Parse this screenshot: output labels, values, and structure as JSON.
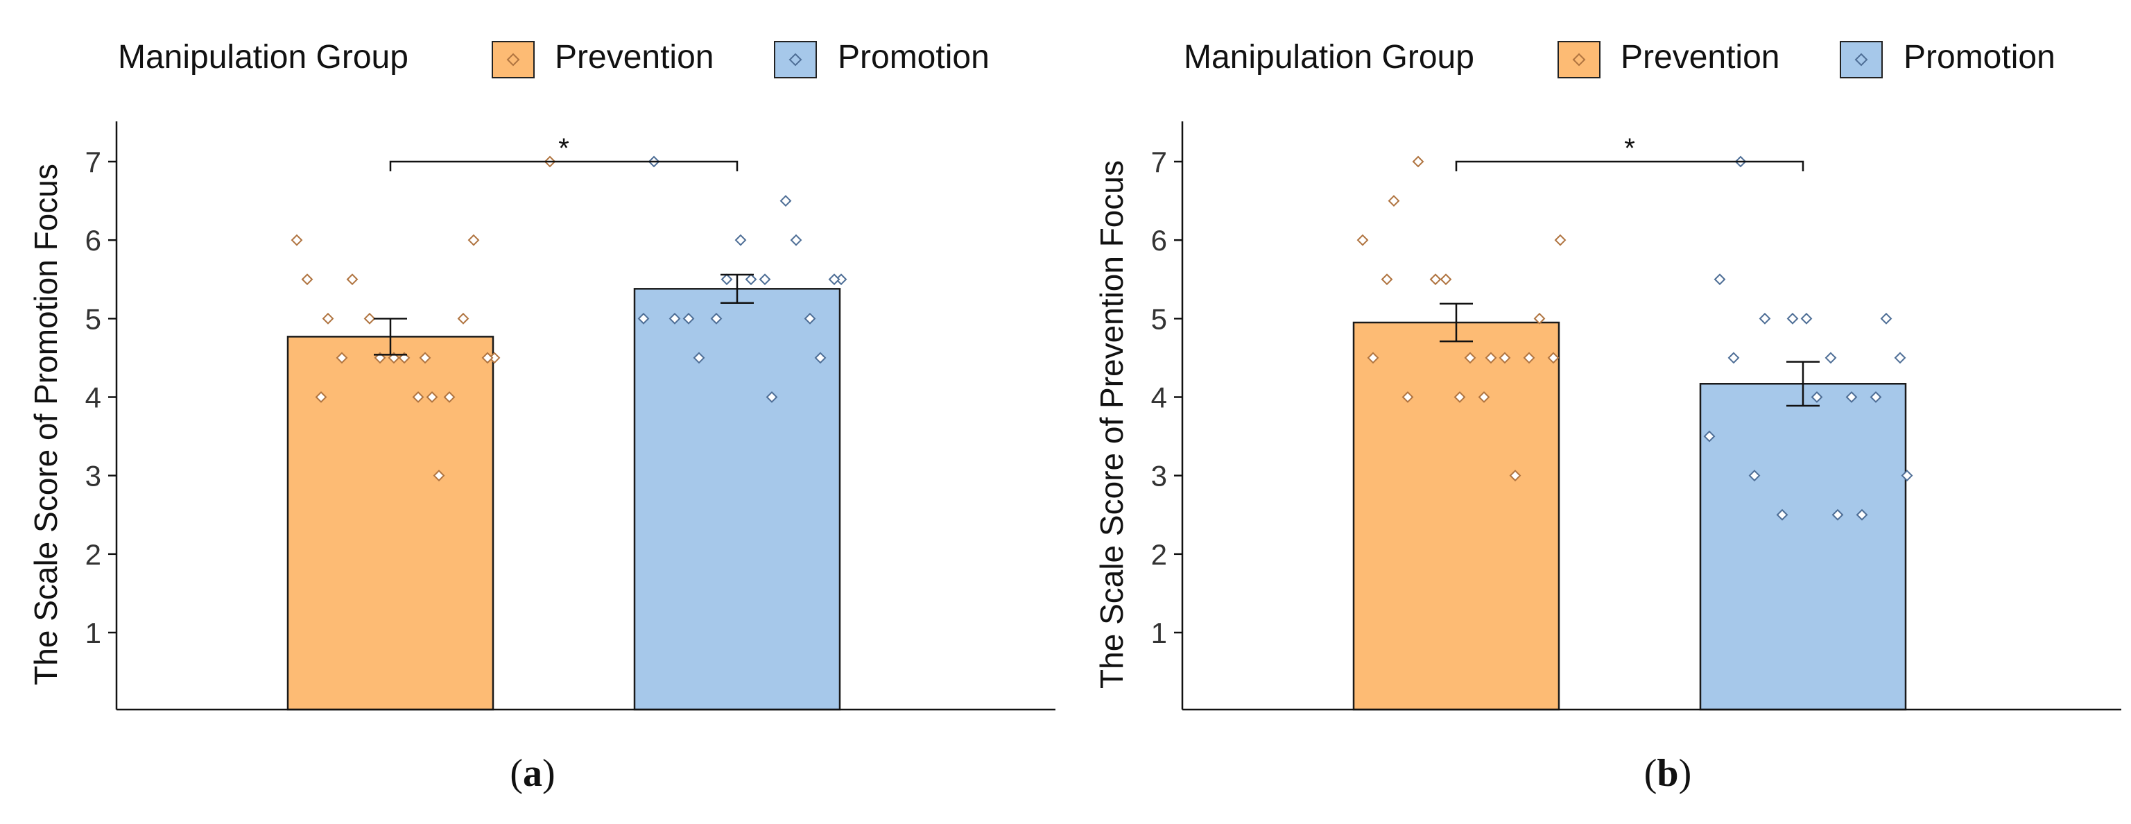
{
  "chart_data": [
    {
      "type": "bar",
      "panel_label": "a",
      "legend_title": "Manipulation Group",
      "categories": [
        "Prevention",
        "Promotion"
      ],
      "values": [
        4.77,
        5.38
      ],
      "error": [
        0.23,
        0.18
      ],
      "ylabel": "The Scale Score of Promotion Focus",
      "xlabel": "",
      "ylim": [
        0,
        7.5
      ],
      "yticks": [
        1,
        2,
        3,
        4,
        5,
        6,
        7
      ],
      "significance": "*",
      "points": {
        "Prevention": [
          6,
          5,
          5.5,
          4.5,
          4.5,
          4.5,
          4,
          6,
          4.5,
          5.5,
          4.5,
          5,
          4.5,
          4,
          3,
          5,
          4.5,
          4,
          4,
          7
        ],
        "Promotion": [
          5,
          5,
          4.5,
          5.5,
          5.5,
          4,
          6,
          4.5,
          5.5,
          7,
          5,
          5,
          6,
          5.5,
          6.5,
          5,
          5.5
        ]
      }
    },
    {
      "type": "bar",
      "panel_label": "b",
      "legend_title": "Manipulation Group",
      "categories": [
        "Prevention",
        "Promotion"
      ],
      "values": [
        4.95,
        4.17
      ],
      "error": [
        0.24,
        0.28
      ],
      "ylabel": "The Scale Score of Prevention Focus",
      "xlabel": "",
      "ylim": [
        0,
        7.5
      ],
      "yticks": [
        1,
        2,
        3,
        4,
        5,
        6,
        7
      ],
      "significance": "*",
      "points": {
        "Prevention": [
          6,
          6.5,
          7,
          5.5,
          4.5,
          4.5,
          3,
          5,
          6,
          4.5,
          4,
          5.5,
          4,
          4,
          4.5,
          4.5,
          4.5,
          5.5
        ],
        "Promotion": [
          3.5,
          7,
          5,
          5,
          4,
          2.5,
          2.5,
          5,
          3,
          5.5,
          3,
          2.5,
          5,
          4.5,
          4,
          4,
          4.5,
          4.5
        ]
      }
    }
  ],
  "colors": {
    "prevention": "#fdbb74",
    "promotion": "#a6c8ea",
    "prevention_point": "#b07440",
    "promotion_point": "#4e6e96"
  }
}
